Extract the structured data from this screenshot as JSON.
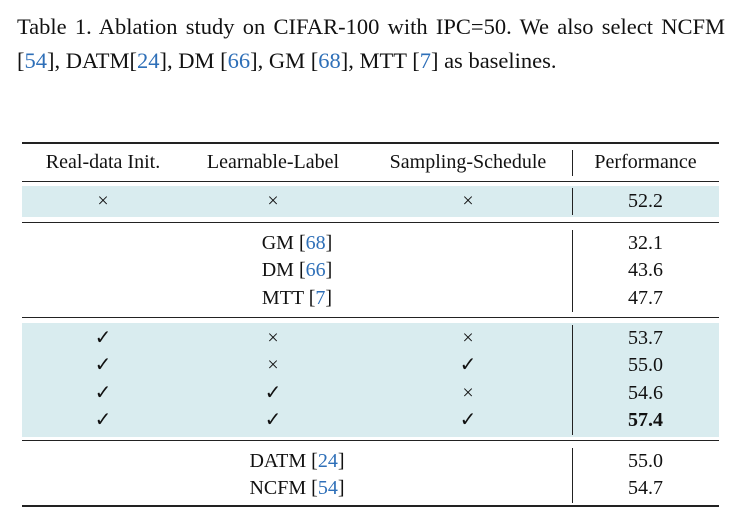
{
  "caption": {
    "segments": [
      {
        "text": "Table 1.  Ablation study on CIFAR-100 with IPC=50.  We also select NCFM ["
      },
      {
        "text": "54",
        "cite": true
      },
      {
        "text": "], DATM["
      },
      {
        "text": "24",
        "cite": true
      },
      {
        "text": "], DM ["
      },
      {
        "text": "66",
        "cite": true
      },
      {
        "text": "], GM ["
      },
      {
        "text": "68",
        "cite": true
      },
      {
        "text": "], MTT ["
      },
      {
        "text": "7",
        "cite": true
      },
      {
        "text": "] as baselines."
      }
    ]
  },
  "table": {
    "header": [
      "Real-data Init.",
      "Learnable-Label",
      "Sampling-Schedule",
      "Performance"
    ],
    "groups": [
      {
        "shaded": true,
        "rows": [
          {
            "cells": [
              "×",
              "×",
              "×"
            ],
            "performance": "52.2"
          }
        ]
      },
      {
        "shaded": false,
        "rows": [
          {
            "method": [
              "GM [",
              "68",
              "]"
            ],
            "performance": "32.1"
          },
          {
            "method": [
              "DM [",
              "66",
              "]"
            ],
            "performance": "43.6"
          },
          {
            "method": [
              "MTT [",
              "7",
              "]"
            ],
            "performance": "47.7"
          }
        ]
      },
      {
        "shaded": true,
        "rows": [
          {
            "cells": [
              "✓",
              "×",
              "×"
            ],
            "performance": "53.7"
          },
          {
            "cells": [
              "✓",
              "×",
              "✓"
            ],
            "performance": "55.0"
          },
          {
            "cells": [
              "✓",
              "✓",
              "×"
            ],
            "performance": "54.6"
          },
          {
            "cells": [
              "✓",
              "✓",
              "✓"
            ],
            "performance": "57.4",
            "bold": true
          }
        ]
      },
      {
        "shaded": false,
        "rows": [
          {
            "method": [
              "DATM [",
              "24",
              "]"
            ],
            "performance": "55.0"
          },
          {
            "method": [
              "NCFM [",
              "54",
              "]"
            ],
            "performance": "54.7"
          }
        ]
      }
    ]
  }
}
